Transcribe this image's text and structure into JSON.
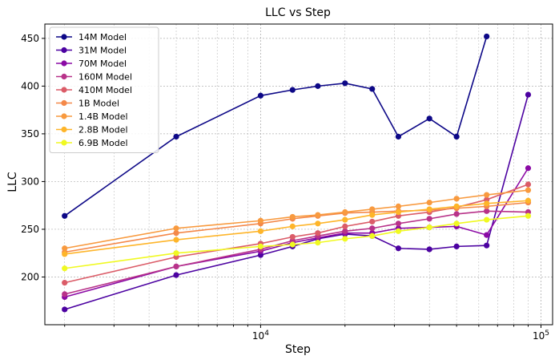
{
  "chart_data": {
    "type": "line",
    "title": "LLC vs Step",
    "xlabel": "Step",
    "ylabel": "LLC",
    "xscale": "log",
    "xlim": [
      1700,
      110000
    ],
    "ylim": [
      150,
      465
    ],
    "x_tick_labels": [
      "10^4",
      "10^5"
    ],
    "y_ticks": [
      200,
      250,
      300,
      350,
      400,
      450
    ],
    "grid": true,
    "legend_position": "top-left",
    "steps": [
      2000,
      5000,
      10000,
      13000,
      16000,
      20000,
      25000,
      31000,
      40000,
      50000,
      64000,
      90000
    ],
    "series": [
      {
        "name": "14M Model",
        "color": "#0d0887",
        "values": [
          264,
          347,
          390,
          396,
          400,
          403,
          397,
          347,
          366,
          347,
          452,
          null
        ]
      },
      {
        "name": "31M Model",
        "color": "#4c02a1",
        "values": [
          166,
          202,
          223,
          232,
          240,
          245,
          243,
          230,
          229,
          232,
          233,
          391
        ]
      },
      {
        "name": "70M Model",
        "color": "#8b0aa5",
        "values": [
          179,
          211,
          227,
          236,
          241,
          246,
          246,
          251,
          252,
          253,
          244,
          314
        ]
      },
      {
        "name": "160M Model",
        "color": "#b83289",
        "values": [
          182,
          211,
          229,
          238,
          243,
          248,
          251,
          256,
          261,
          266,
          269,
          268
        ]
      },
      {
        "name": "410M Model",
        "color": "#db5c68",
        "values": [
          194,
          221,
          235,
          242,
          246,
          253,
          258,
          264,
          268,
          273,
          281,
          297
        ]
      },
      {
        "name": "1B Model",
        "color": "#f48849",
        "values": [
          226,
          246,
          256,
          261,
          264,
          267,
          268,
          269,
          270,
          272,
          274,
          278
        ]
      },
      {
        "name": "1.4B Model",
        "color": "#f89a3f",
        "values": [
          230,
          251,
          259,
          263,
          265,
          268,
          271,
          274,
          278,
          282,
          286,
          291
        ]
      },
      {
        "name": "2.8B Model",
        "color": "#feb52a",
        "values": [
          224,
          239,
          248,
          253,
          256,
          260,
          265,
          268,
          271,
          274,
          277,
          280
        ]
      },
      {
        "name": "6.9B Model",
        "color": "#f0f921",
        "values": [
          209,
          225,
          232,
          234,
          236,
          240,
          243,
          248,
          252,
          256,
          260,
          264
        ]
      }
    ]
  }
}
